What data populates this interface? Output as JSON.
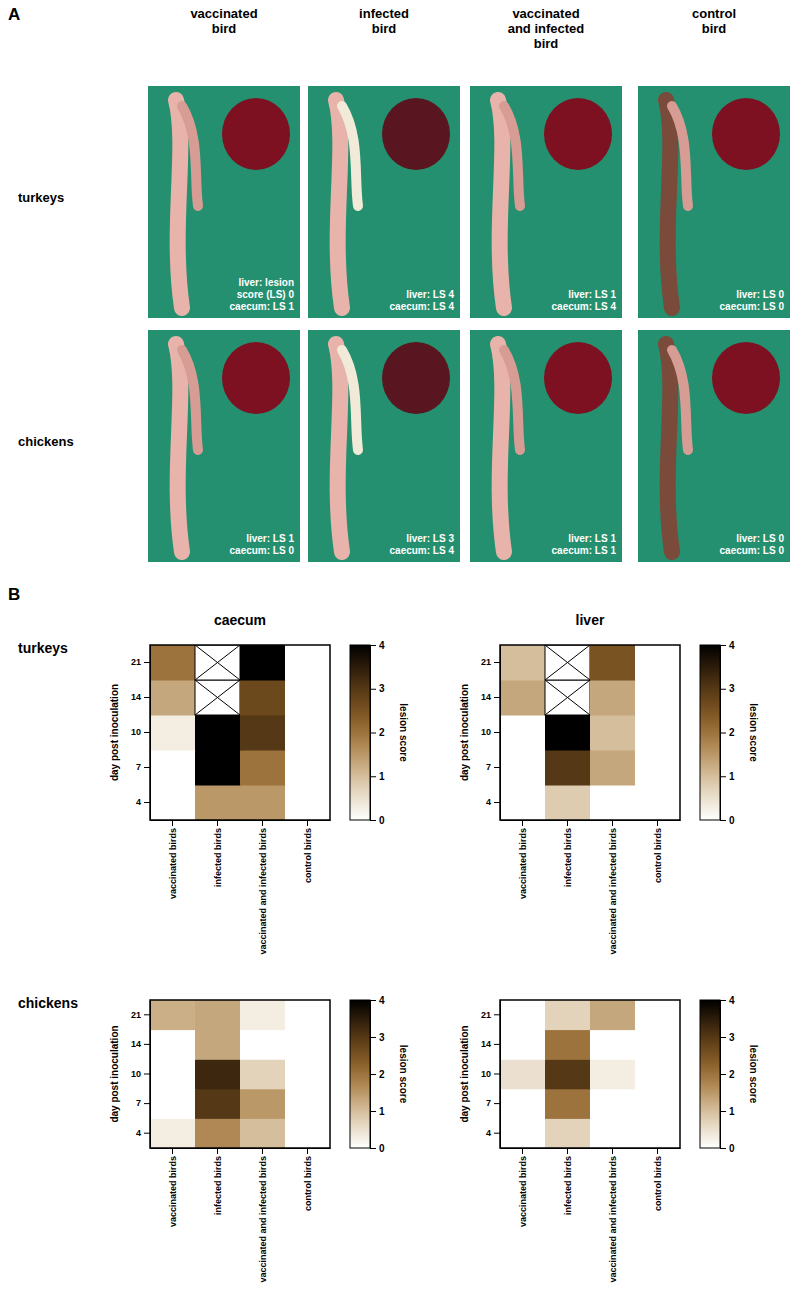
{
  "panel_a": {
    "label": "A",
    "columns": [
      [
        "vaccinated",
        "bird"
      ],
      [
        "infected",
        "bird"
      ],
      [
        "vaccinated",
        "and infected",
        "bird"
      ],
      [
        "control",
        "bird"
      ]
    ],
    "rows": [
      "turkeys",
      "chickens"
    ],
    "annotations": [
      [
        [
          "liver: lesion",
          "score (LS) 0",
          "caecum: LS 1"
        ],
        [
          "liver: LS 4",
          "caecum: LS 4"
        ],
        [
          "liver: LS 1",
          "caecum: LS 4"
        ],
        [
          "liver: LS 0",
          "caecum: LS 0"
        ]
      ],
      [
        [
          "liver: LS 1",
          "caecum: LS 0"
        ],
        [
          "liver: LS 3",
          "caecum: LS 4"
        ],
        [
          "liver: LS 1",
          "caecum: LS 1"
        ],
        [
          "liver: LS 0",
          "caecum: LS 0"
        ]
      ]
    ]
  },
  "panel_b": {
    "label": "B",
    "column_titles": [
      "caecum",
      "liver"
    ],
    "row_titles": [
      "turkeys",
      "chickens"
    ]
  },
  "chart_data": [
    {
      "type": "heatmap",
      "categories": [
        "vaccinated birds",
        "infected birds",
        "vaccinated and infected birds",
        "control birds"
      ],
      "y_categories": [
        "4",
        "7",
        "10",
        "14",
        "21"
      ],
      "ylabel": "day post inoculation",
      "cells": [
        [
          0,
          1.5,
          1.5,
          0
        ],
        [
          0,
          4,
          2,
          0
        ],
        [
          0.3,
          4,
          3,
          0
        ],
        [
          1.3,
          null,
          2.7,
          0
        ],
        [
          2,
          null,
          4,
          0
        ]
      ],
      "colorbar": {
        "label": "lesion score",
        "range": [
          0,
          4
        ],
        "ticks": [
          0,
          1,
          2,
          3,
          4
        ]
      }
    },
    {
      "type": "heatmap",
      "categories": [
        "vaccinated birds",
        "infected birds",
        "vaccinated and infected birds",
        "control birds"
      ],
      "y_categories": [
        "4",
        "7",
        "10",
        "14",
        "21"
      ],
      "ylabel": "day post inoculation",
      "cells": [
        [
          0,
          0.8,
          0,
          0
        ],
        [
          0,
          3,
          1.3,
          0
        ],
        [
          0,
          4,
          1,
          0
        ],
        [
          1.3,
          null,
          1.3,
          0
        ],
        [
          1,
          null,
          2.5,
          0
        ]
      ],
      "colorbar": {
        "label": "lesion score",
        "range": [
          0,
          4
        ],
        "ticks": [
          0,
          1,
          2,
          3,
          4
        ]
      }
    },
    {
      "type": "heatmap",
      "categories": [
        "vaccinated birds",
        "infected birds",
        "vaccinated and infected birds",
        "control birds"
      ],
      "y_categories": [
        "4",
        "7",
        "10",
        "14",
        "21"
      ],
      "ylabel": "day post inoculation",
      "cells": [
        [
          0.3,
          1.7,
          1,
          0
        ],
        [
          0,
          3,
          1.5,
          0
        ],
        [
          0,
          3.3,
          0.7,
          0
        ],
        [
          0,
          1.3,
          0,
          0
        ],
        [
          1.2,
          1.3,
          0.3,
          0
        ]
      ],
      "colorbar": {
        "label": "lesion score",
        "range": [
          0,
          4
        ],
        "ticks": [
          0,
          1,
          2,
          3,
          4
        ]
      }
    },
    {
      "type": "heatmap",
      "categories": [
        "vaccinated birds",
        "infected birds",
        "vaccinated and infected birds",
        "control birds"
      ],
      "y_categories": [
        "4",
        "7",
        "10",
        "14",
        "21"
      ],
      "ylabel": "day post inoculation",
      "cells": [
        [
          0,
          0.7,
          0,
          0
        ],
        [
          0,
          2,
          0,
          0
        ],
        [
          0.5,
          3,
          0.3,
          0
        ],
        [
          0,
          2,
          0,
          0
        ],
        [
          0,
          0.7,
          1.3,
          0
        ]
      ],
      "colorbar": {
        "label": "lesion score",
        "range": [
          0,
          4
        ],
        "ticks": [
          0,
          1,
          2,
          3,
          4
        ]
      }
    }
  ]
}
